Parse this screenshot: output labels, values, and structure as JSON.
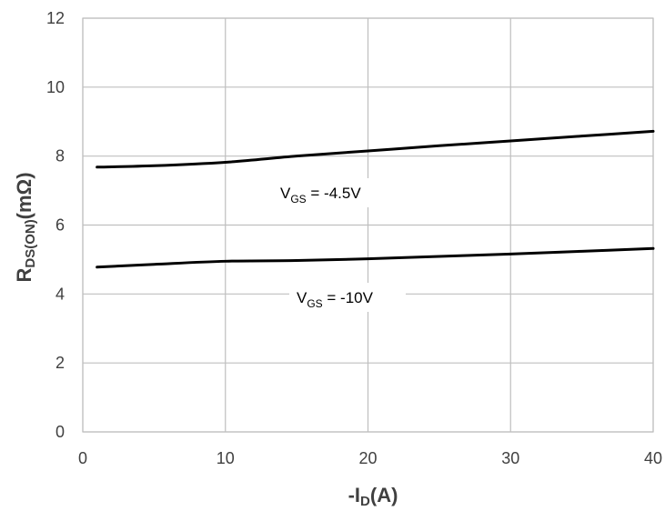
{
  "chart_data": {
    "type": "line",
    "xlabel": {
      "main": "-I",
      "sub": "D",
      "tail": "(A)"
    },
    "ylabel": {
      "main": "R",
      "sub": "DS(ON)",
      "tail": "(mΩ)"
    },
    "xlim": [
      0,
      40
    ],
    "ylim": [
      0,
      12
    ],
    "xticks": [
      0,
      10,
      20,
      30,
      40
    ],
    "yticks": [
      0,
      2,
      4,
      6,
      8,
      10,
      12
    ],
    "grid": true,
    "series": [
      {
        "label_main": "V",
        "label_sub": "GS",
        "label_tail": " = -4.5V",
        "color": "#000000",
        "x": [
          1,
          5,
          10,
          15,
          20,
          25,
          30,
          35,
          40
        ],
        "y": [
          7.68,
          7.72,
          7.82,
          8.0,
          8.15,
          8.3,
          8.44,
          8.58,
          8.72
        ]
      },
      {
        "label_main": "V",
        "label_sub": "GS",
        "label_tail": " = -10V",
        "color": "#000000",
        "x": [
          1,
          5,
          10,
          15,
          20,
          25,
          30,
          35,
          40
        ],
        "y": [
          4.78,
          4.86,
          4.95,
          4.97,
          5.02,
          5.09,
          5.16,
          5.24,
          5.32
        ]
      }
    ]
  }
}
